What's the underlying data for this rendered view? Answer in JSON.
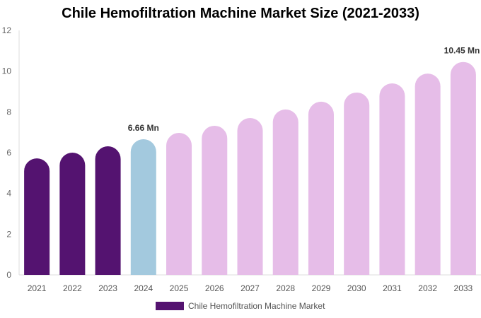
{
  "chart_data": {
    "type": "bar",
    "title": "Chile Hemofiltration Machine Market Size (2021-2033)",
    "categories": [
      "2021",
      "2022",
      "2023",
      "2024",
      "2025",
      "2026",
      "2027",
      "2028",
      "2029",
      "2030",
      "2031",
      "2032",
      "2033"
    ],
    "series": [
      {
        "name": "Chile Hemofiltration Machine Market",
        "values": [
          5.72,
          6.0,
          6.31,
          6.66,
          6.97,
          7.32,
          7.7,
          8.12,
          8.5,
          8.95,
          9.4,
          9.88,
          10.45
        ]
      }
    ],
    "data_labels": [
      {
        "category": "2024",
        "text": "6.66 Mn"
      },
      {
        "category": "2033",
        "text": "10.45 Mn"
      }
    ],
    "ylim": [
      0,
      12
    ],
    "yticks": [
      0,
      2,
      4,
      6,
      8,
      10,
      12
    ],
    "xlabel": "",
    "ylabel": "",
    "grid": false,
    "legend": "bottom",
    "colors": {
      "historical": "#541370",
      "current": "#a3c9de",
      "forecast": "#e6bde8"
    }
  }
}
